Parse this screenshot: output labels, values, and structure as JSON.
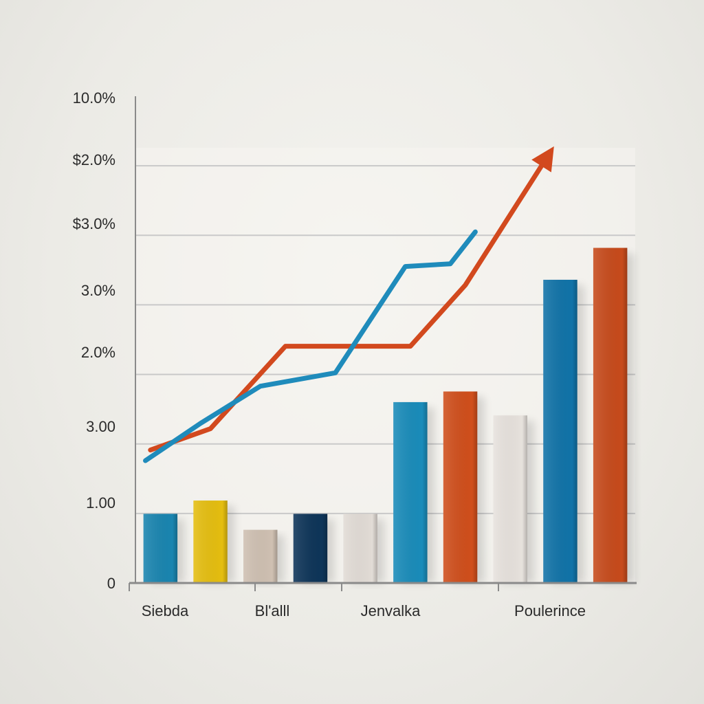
{
  "chart_data": {
    "type": "bar",
    "y_tick_labels": [
      "0",
      "1.00",
      "3.00",
      "2.0%",
      "3.0%",
      "$3.0%",
      "$2.0%",
      "10.0%"
    ],
    "categories": [
      "Siebda",
      "Bl'alll",
      "Jenvalka",
      "Poulerince"
    ],
    "bars": [
      {
        "value": 1.3,
        "color": "#1a85b0"
      },
      {
        "value": 1.55,
        "color": "#e5be10"
      },
      {
        "value": 1.0,
        "color": "#cfc0b2"
      },
      {
        "value": 1.3,
        "color": "#0e3559"
      },
      {
        "value": 1.3,
        "color": "#e2dcd6"
      },
      {
        "value": 3.4,
        "color": "#1a8cba"
      },
      {
        "value": 3.6,
        "color": "#d04f1c"
      },
      {
        "value": 3.15,
        "color": "#e7e2dd"
      },
      {
        "value": 5.7,
        "color": "#1173a8"
      },
      {
        "value": 6.3,
        "color": "#c74b1c"
      }
    ],
    "series": [
      {
        "color": "#d2491e",
        "arrow": true,
        "points": [
          [
            0.3,
            2.5
          ],
          [
            1.5,
            2.9
          ],
          [
            3.0,
            4.45
          ],
          [
            5.5,
            4.45
          ],
          [
            6.6,
            5.6
          ],
          [
            8.3,
            8.1
          ]
        ]
      },
      {
        "color": "#1f8bbb",
        "arrow": false,
        "points": [
          [
            0.2,
            2.3
          ],
          [
            1.3,
            3.0
          ],
          [
            2.5,
            3.7
          ],
          [
            4.0,
            3.95
          ],
          [
            5.4,
            5.95
          ],
          [
            6.3,
            6.0
          ],
          [
            6.8,
            6.6
          ]
        ]
      }
    ],
    "ylim": [
      0,
      9.15
    ],
    "grid": true,
    "colors": {
      "axis": "#8a8a8a",
      "grid": "#c9c9c9",
      "text": "#2a2a2a"
    }
  }
}
